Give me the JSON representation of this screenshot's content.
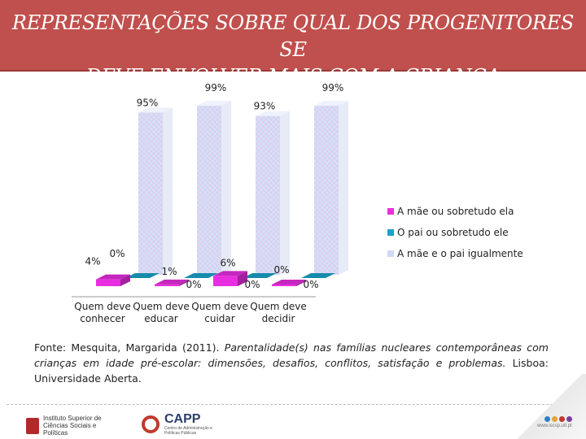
{
  "title": {
    "line1": "REPRESENTAÇÕES SOBRE QUAL DOS PROGENITORES SE",
    "line2": "DEVE ENVOLVER MAIS COM A CRIANÇA"
  },
  "chart_data": {
    "type": "bar",
    "variant": "3d-clustered",
    "categories": [
      {
        "line1": "Quem deve",
        "line2": "conhecer"
      },
      {
        "line1": "Quem deve",
        "line2": "educar"
      },
      {
        "line1": "Quem deve",
        "line2": "cuidar"
      },
      {
        "line1": "Quem deve",
        "line2": "decidir"
      }
    ],
    "ylim": [
      0,
      100
    ],
    "series": [
      {
        "name": "A mãe ou sobretudo ela",
        "color": "#e82ee0",
        "values": [
          4,
          1,
          6,
          0
        ],
        "labels": [
          "4%",
          "1%",
          "6%",
          "0%"
        ]
      },
      {
        "name": "O pai ou sobretudo ele",
        "color": "#1aa3c9",
        "values": [
          0,
          0,
          0,
          0
        ],
        "labels": [
          "0%",
          "0%",
          "0%",
          "0%"
        ]
      },
      {
        "name": "A mãe e o pai igualmente",
        "color": "#cfd9f2",
        "values": [
          95,
          99,
          93,
          99
        ],
        "labels": [
          "95%",
          "99%",
          "93%",
          "99%"
        ]
      }
    ],
    "legend_position": "right"
  },
  "source": {
    "prefix": "Fonte: Mesquita, Margarida (2011). ",
    "title": "Parentalidade(s) nas famílias nucleares contemporâneas com crianças em idade pré-escolar: dimensões, desafios, conflitos, satisfação e problemas.",
    "suffix": " Lisboa: Universidade Aberta."
  },
  "logos": {
    "iscsp": "Instituto Superior de Ciências Sociais e Políticas",
    "capp": "CAPP",
    "capp_sub": "Centro de Administração e Políticas Públicas",
    "site": "www.iscsp.utl.pt"
  }
}
